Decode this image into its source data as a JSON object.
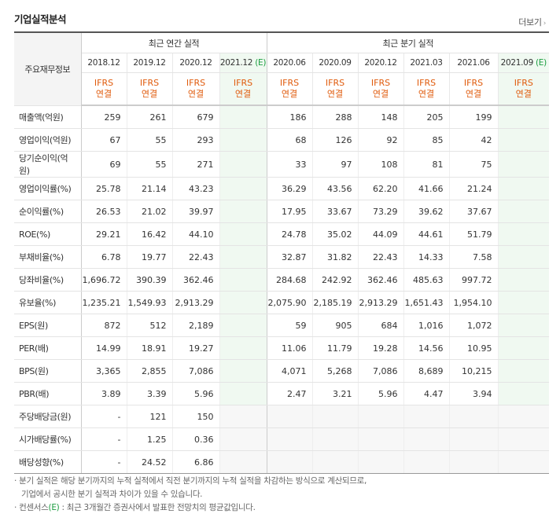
{
  "section_title": "기업실적분석",
  "more_label": "더보기",
  "corner_label": "주요재무정보",
  "groups": {
    "annual": "최근 연간 실적",
    "quarter": "최근 분기 실적"
  },
  "periods": [
    "2018.12",
    "2019.12",
    "2020.12",
    "2021.12",
    "2020.06",
    "2020.09",
    "2020.12",
    "2021.03",
    "2021.06",
    "2021.09"
  ],
  "estimate_mark": "(E)",
  "estimate_flags": [
    false,
    false,
    false,
    true,
    false,
    false,
    false,
    false,
    false,
    true
  ],
  "std_line1": "IFRS",
  "std_line2": "연결",
  "rows": [
    {
      "label": "매출액(억원)",
      "values": [
        "259",
        "261",
        "679",
        "",
        "186",
        "288",
        "148",
        "205",
        "199",
        ""
      ]
    },
    {
      "label": "영업이익(억원)",
      "values": [
        "67",
        "55",
        "293",
        "",
        "68",
        "126",
        "92",
        "85",
        "42",
        ""
      ]
    },
    {
      "label": "당기순이익(억원)",
      "values": [
        "69",
        "55",
        "271",
        "",
        "33",
        "97",
        "108",
        "81",
        "75",
        ""
      ]
    },
    {
      "label": "영업이익률(%)",
      "values": [
        "25.78",
        "21.14",
        "43.23",
        "",
        "36.29",
        "43.56",
        "62.20",
        "41.66",
        "21.24",
        ""
      ]
    },
    {
      "label": "순이익률(%)",
      "values": [
        "26.53",
        "21.02",
        "39.97",
        "",
        "17.95",
        "33.67",
        "73.29",
        "39.62",
        "37.67",
        ""
      ]
    },
    {
      "label": "ROE(%)",
      "values": [
        "29.21",
        "16.42",
        "44.10",
        "",
        "24.78",
        "35.02",
        "44.09",
        "44.61",
        "51.79",
        ""
      ]
    },
    {
      "label": "부채비율(%)",
      "values": [
        "6.78",
        "19.77",
        "22.43",
        "",
        "32.87",
        "31.82",
        "22.43",
        "14.33",
        "7.58",
        ""
      ]
    },
    {
      "label": "당좌비율(%)",
      "values": [
        "1,696.72",
        "390.39",
        "362.46",
        "",
        "284.68",
        "242.92",
        "362.46",
        "485.63",
        "997.72",
        ""
      ]
    },
    {
      "label": "유보율(%)",
      "values": [
        "1,235.21",
        "1,549.93",
        "2,913.29",
        "",
        "2,075.90",
        "2,185.19",
        "2,913.29",
        "1,651.43",
        "1,954.10",
        ""
      ]
    },
    {
      "label": "EPS(원)",
      "values": [
        "872",
        "512",
        "2,189",
        "",
        "59",
        "905",
        "684",
        "1,016",
        "1,072",
        ""
      ]
    },
    {
      "label": "PER(배)",
      "values": [
        "14.99",
        "18.91",
        "19.27",
        "",
        "11.06",
        "11.79",
        "19.28",
        "14.56",
        "10.95",
        ""
      ]
    },
    {
      "label": "BPS(원)",
      "values": [
        "3,365",
        "2,855",
        "7,086",
        "",
        "4,071",
        "5,268",
        "7,086",
        "8,689",
        "10,215",
        ""
      ]
    },
    {
      "label": "PBR(배)",
      "values": [
        "3.89",
        "3.39",
        "5.96",
        "",
        "2.47",
        "3.21",
        "5.96",
        "4.47",
        "3.94",
        ""
      ]
    },
    {
      "label": "주당배당금(원)",
      "values": [
        "-",
        "121",
        "150",
        "",
        "",
        "",
        "",
        "",
        "",
        ""
      ]
    },
    {
      "label": "시가배당률(%)",
      "values": [
        "-",
        "1.25",
        "0.36",
        "",
        "",
        "",
        "",
        "",
        "",
        ""
      ]
    },
    {
      "label": "배당성향(%)",
      "values": [
        "-",
        "24.52",
        "6.86",
        "",
        "",
        "",
        "",
        "",
        "",
        ""
      ]
    }
  ],
  "notes": {
    "line1": "분기 실적은 해당 분기까지의 누적 실적에서 직전 분기까지의 누적 실적을 차감하는 방식으로 계산되므로,",
    "line2": "기업에서 공시한 분기 실적과 차이가 있을 수 있습니다.",
    "line3_prefix": "컨센서스",
    "line3_mark": "(E)",
    "line3_suffix": ": 최근 3개월간 증권사에서 발표한 전망치의 평균값입니다."
  }
}
